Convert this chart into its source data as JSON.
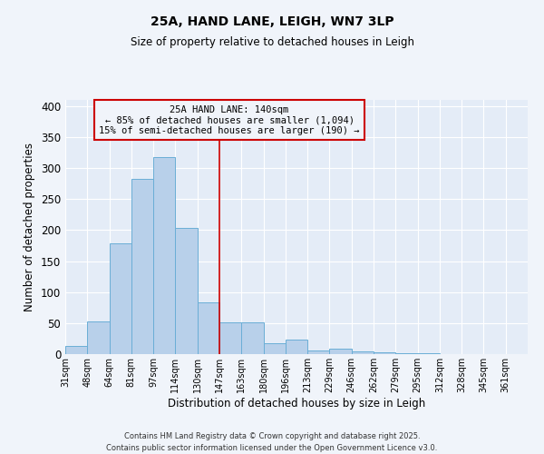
{
  "title": "25A, HAND LANE, LEIGH, WN7 3LP",
  "subtitle": "Size of property relative to detached houses in Leigh",
  "xlabel": "Distribution of detached houses by size in Leigh",
  "ylabel": "Number of detached properties",
  "bar_values": [
    13,
    53,
    178,
    283,
    318,
    204,
    83,
    51,
    51,
    17,
    24,
    6,
    9,
    4,
    3,
    1,
    1,
    0,
    0,
    0,
    0
  ],
  "all_labels": [
    "31sqm",
    "48sqm",
    "64sqm",
    "81sqm",
    "97sqm",
    "114sqm",
    "130sqm",
    "147sqm",
    "163sqm",
    "180sqm",
    "196sqm",
    "213sqm",
    "229sqm",
    "246sqm",
    "262sqm",
    "279sqm",
    "295sqm",
    "312sqm",
    "328sqm",
    "345sqm",
    "361sqm"
  ],
  "bar_color": "#b8d0ea",
  "bar_edge_color": "#6aaed6",
  "vline_x": 7,
  "vline_color": "#cc0000",
  "annotation_text": "25A HAND LANE: 140sqm\n← 85% of detached houses are smaller (1,094)\n15% of semi-detached houses are larger (190) →",
  "box_edge_color": "#cc0000",
  "ylim": [
    0,
    410
  ],
  "yticks": [
    0,
    50,
    100,
    150,
    200,
    250,
    300,
    350,
    400
  ],
  "footnote": "Contains HM Land Registry data © Crown copyright and database right 2025.\nContains public sector information licensed under the Open Government Licence v3.0.",
  "background_color": "#f0f4fa",
  "plot_bg_color": "#e4ecf7"
}
